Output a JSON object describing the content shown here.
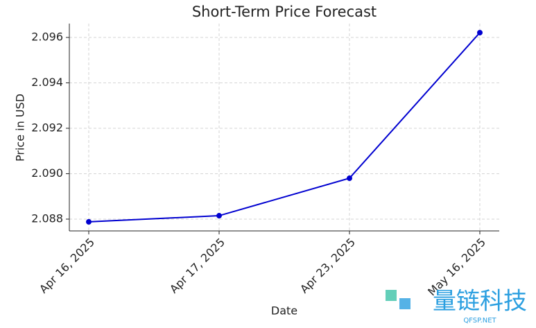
{
  "chart_data": {
    "type": "line",
    "title": "Short-Term Price Forecast",
    "x_label": "Date",
    "y_label": "Price in USD",
    "categories": [
      "Apr 16, 2025",
      "Apr 17, 2025",
      "Apr 23, 2025",
      "May 16, 2025"
    ],
    "series": [
      {
        "name": "Price",
        "color": "#0000d0",
        "values": [
          2.08788,
          2.08815,
          2.0898,
          2.09621
        ]
      }
    ],
    "ylim": [
      2.08748,
      2.09661
    ],
    "yticks": [
      2.088,
      {
        "value": 2.09,
        "label": "2.090"
      },
      2.092,
      2.094,
      2.096
    ],
    "grid": true
  },
  "watermark": {
    "text": "量链科技",
    "subtext": "QFSP.NET"
  }
}
